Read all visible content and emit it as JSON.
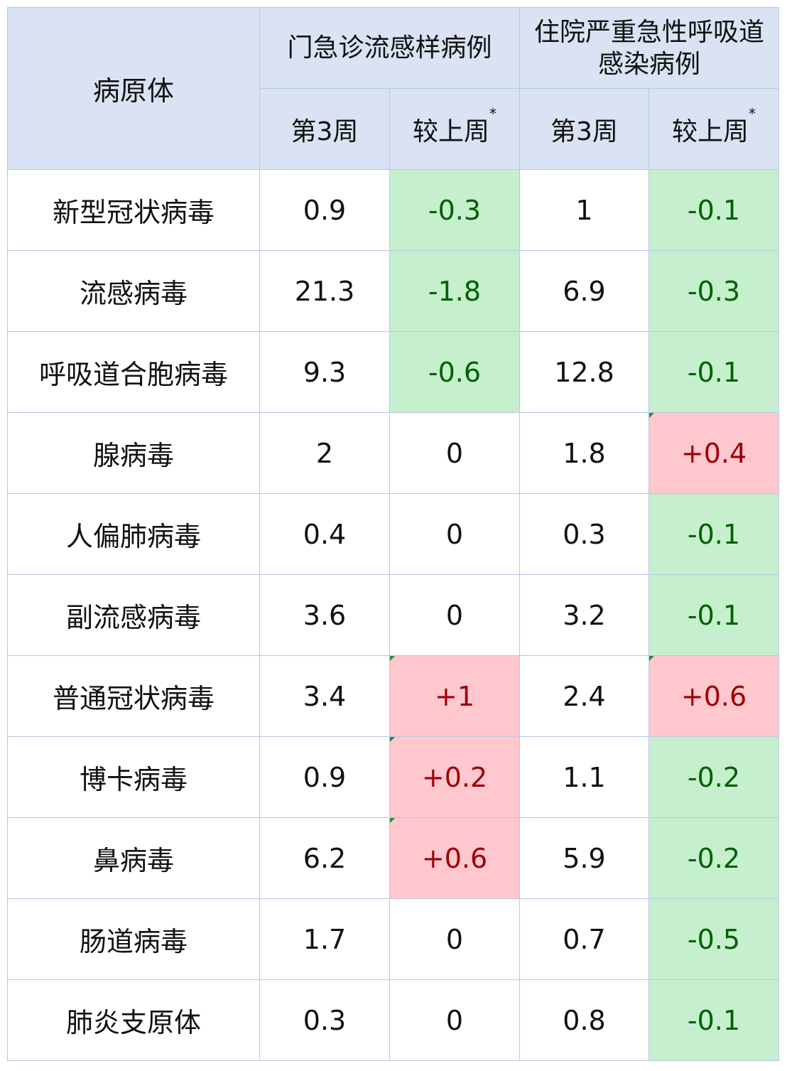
{
  "table": {
    "pathogen_header": "病原体",
    "group_outpatient": "门急诊流感样病例",
    "group_inpatient": "住院严重急性呼吸道感染病例",
    "subheaders": {
      "week": "第3周",
      "change": "较上周",
      "asterisk": "*"
    },
    "rows": [
      {
        "name": "新型冠状病毒",
        "op_week": "0.9",
        "op_change": "-0.3",
        "ip_week": "1",
        "ip_change": "-0.1"
      },
      {
        "name": "流感病毒",
        "op_week": "21.3",
        "op_change": "-1.8",
        "ip_week": "6.9",
        "ip_change": "-0.3"
      },
      {
        "name": "呼吸道合胞病毒",
        "op_week": "9.3",
        "op_change": "-0.6",
        "ip_week": "12.8",
        "ip_change": "-0.1"
      },
      {
        "name": "腺病毒",
        "op_week": "2",
        "op_change": "0",
        "ip_week": "1.8",
        "ip_change": "+0.4"
      },
      {
        "name": "人偏肺病毒",
        "op_week": "0.4",
        "op_change": "0",
        "ip_week": "0.3",
        "ip_change": "-0.1"
      },
      {
        "name": "副流感病毒",
        "op_week": "3.6",
        "op_change": "0",
        "ip_week": "3.2",
        "ip_change": "-0.1"
      },
      {
        "name": "普通冠状病毒",
        "op_week": "3.4",
        "op_change": "+1",
        "ip_week": "2.4",
        "ip_change": "+0.6"
      },
      {
        "name": "博卡病毒",
        "op_week": "0.9",
        "op_change": "+0.2",
        "ip_week": "1.1",
        "ip_change": "-0.2"
      },
      {
        "name": "鼻病毒",
        "op_week": "6.2",
        "op_change": "+0.6",
        "ip_week": "5.9",
        "ip_change": "-0.2"
      },
      {
        "name": "肠道病毒",
        "op_week": "1.7",
        "op_change": "0",
        "ip_week": "0.7",
        "ip_change": "-0.5"
      },
      {
        "name": "肺炎支原体",
        "op_week": "0.3",
        "op_change": "0",
        "ip_week": "0.8",
        "ip_change": "-0.1"
      }
    ]
  },
  "colors": {
    "header_bg": "#dae3f3",
    "border": "#b9c7e3",
    "decrease_bg": "#c6efce",
    "decrease_text": "#006100",
    "increase_bg": "#ffc7ce",
    "increase_text": "#9c0006"
  }
}
